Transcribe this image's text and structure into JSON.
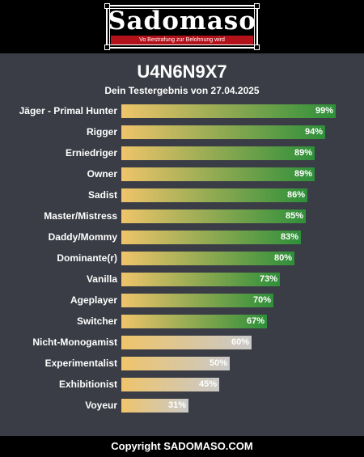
{
  "header": {
    "logo_text": "Sadomaso",
    "logo_tagline": "Vo Bestrafung zur Belohnung wird"
  },
  "title": "U4N6N9X7",
  "subtitle": "Dein Testergebnis von 27.04.2025",
  "colors": {
    "background": "#3a3d45",
    "gradient_start": "#efc46a",
    "gradient_green_end": "#2e8f3a",
    "gradient_gray_end": "#c9c9c9",
    "logo_red": "#b3121b"
  },
  "chart_data": {
    "type": "bar",
    "orientation": "horizontal",
    "categories": [
      "Jäger - Primal Hunter",
      "Rigger",
      "Erniedriger",
      "Owner",
      "Sadist",
      "Master/Mistress",
      "Daddy/Mommy",
      "Dominante(r)",
      "Vanilla",
      "Ageplayer",
      "Switcher",
      "Nicht-Monogamist",
      "Experimentalist",
      "Exhibitionist",
      "Voyeur"
    ],
    "values": [
      99,
      94,
      89,
      89,
      86,
      85,
      83,
      80,
      73,
      70,
      67,
      60,
      50,
      45,
      31
    ],
    "value_labels": [
      "99%",
      "94%",
      "89%",
      "89%",
      "86%",
      "85%",
      "83%",
      "80%",
      "73%",
      "70%",
      "67%",
      "60%",
      "50%",
      "45%",
      "31%"
    ],
    "unit": "%",
    "xlim": [
      0,
      100
    ],
    "green_threshold": 65,
    "grid": false,
    "legend": "none"
  },
  "footer": {
    "text": "Copyright SADOMASO.COM"
  }
}
